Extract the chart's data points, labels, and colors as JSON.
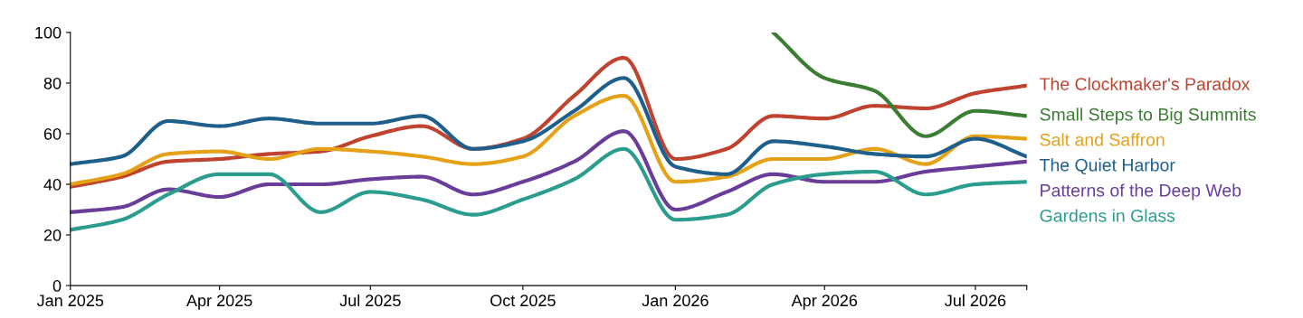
{
  "chart_data": {
    "type": "line",
    "x": [
      "2025-01",
      "2025-02",
      "2025-03",
      "2025-04",
      "2025-05",
      "2025-06",
      "2025-07",
      "2025-08",
      "2025-09",
      "2025-10",
      "2025-11",
      "2025-12",
      "2026-01",
      "2026-02",
      "2026-03",
      "2026-04",
      "2026-05",
      "2026-06",
      "2026-07",
      "2026-08"
    ],
    "series": [
      {
        "name": "The Clockmaker's Paradox",
        "color": "#bf432f",
        "values": [
          39,
          43,
          49,
          50,
          52,
          53,
          59,
          63,
          54,
          58,
          75,
          90,
          50,
          54,
          67,
          66,
          71,
          70,
          76,
          79
        ]
      },
      {
        "name": "Small Steps to Big Summits",
        "color": "#3a7d33",
        "values": [
          null,
          null,
          null,
          null,
          null,
          null,
          null,
          null,
          null,
          null,
          null,
          null,
          null,
          null,
          100,
          82,
          77,
          59,
          69,
          67
        ]
      },
      {
        "name": "Salt and Saffron",
        "color": "#e5a118",
        "values": [
          40,
          44,
          52,
          53,
          50,
          54,
          53,
          51,
          48,
          51,
          67,
          75,
          41,
          43,
          50,
          50,
          54,
          48,
          59,
          58
        ]
      },
      {
        "name": "The Quiet Harbor",
        "color": "#1f5f8b",
        "values": [
          48,
          51,
          65,
          63,
          66,
          64,
          64,
          67,
          54,
          57,
          69,
          82,
          47,
          44,
          57,
          55,
          52,
          51,
          58,
          51
        ]
      },
      {
        "name": "Patterns of the Deep Web",
        "color": "#6a3d9a",
        "values": [
          29,
          31,
          38,
          35,
          40,
          40,
          42,
          43,
          36,
          41,
          49,
          61,
          30,
          37,
          44,
          41,
          41,
          45,
          47,
          49
        ]
      },
      {
        "name": "Gardens in Glass",
        "color": "#2a9d8f",
        "values": [
          22,
          26,
          36,
          44,
          44,
          29,
          37,
          34,
          28,
          34,
          42,
          54,
          26,
          28,
          40,
          44,
          45,
          36,
          40,
          41
        ]
      }
    ],
    "xlim": [
      "2025-01",
      "2026-08"
    ],
    "xticks": [
      {
        "value": "2025-01",
        "label": "Jan 2025"
      },
      {
        "value": "2025-04",
        "label": "Apr 2025"
      },
      {
        "value": "2025-07",
        "label": "Jul 2025"
      },
      {
        "value": "2025-10",
        "label": "Oct 2025"
      },
      {
        "value": "2026-01",
        "label": "Jan 2026"
      },
      {
        "value": "2026-04",
        "label": "Apr 2026"
      },
      {
        "value": "2026-07",
        "label": "Jul 2026"
      },
      {
        "value": "2026-08",
        "label": null
      }
    ],
    "ylim": [
      0,
      100
    ],
    "yticks": [
      0,
      20,
      40,
      60,
      80,
      100
    ],
    "grid": false,
    "legend": false,
    "marker": "none",
    "line_style": "solid"
  }
}
